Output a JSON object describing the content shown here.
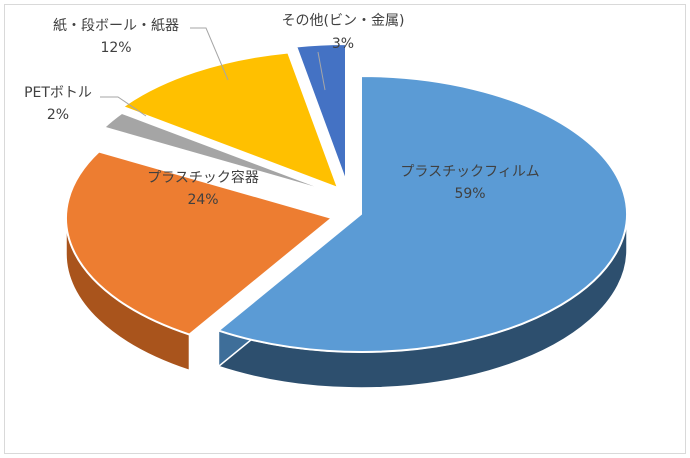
{
  "chart_data": {
    "type": "pie",
    "style": "3d-exploded",
    "slices": [
      {
        "label": "プラスチックフィルム",
        "value": 59,
        "value_label": "59%",
        "color": "#5B9BD5",
        "side": "#2D4F6E"
      },
      {
        "label": "プラスチック容器",
        "value": 24,
        "value_label": "24%",
        "color": "#ED7D31",
        "side": "#A9541C"
      },
      {
        "label": "PETボトル",
        "value": 2,
        "value_label": "2%",
        "color": "#A5A5A5",
        "side": "#6E6E6E"
      },
      {
        "label": "紙・段ボール・紙器",
        "value": 12,
        "value_label": "12%",
        "color": "#FFC000",
        "side": "#B88A00"
      },
      {
        "label": "その他(ビン・金属)",
        "value": 3,
        "value_label": "3%",
        "color": "#4472C4",
        "side": "#2A4A85"
      }
    ]
  }
}
